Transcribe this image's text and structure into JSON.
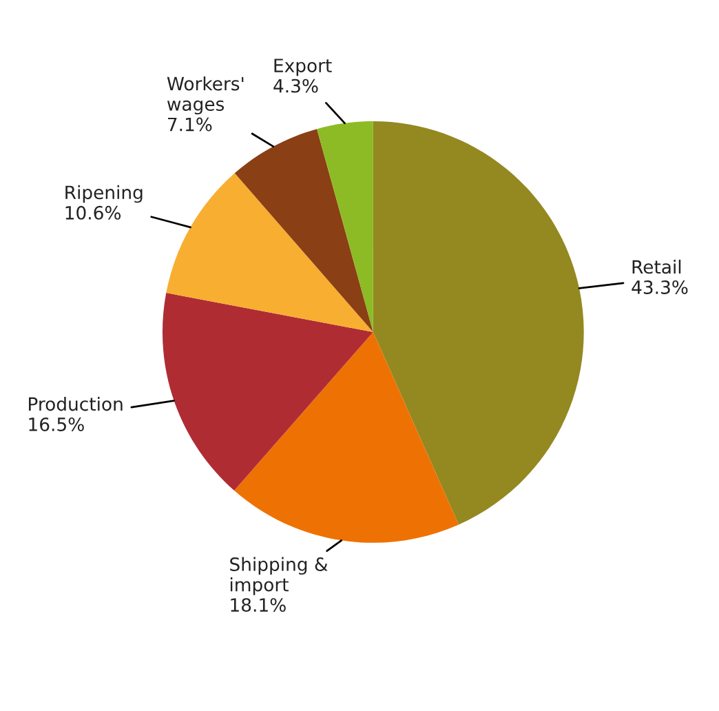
{
  "chart_data": {
    "type": "pie",
    "categories": [
      "Retail",
      "Shipping &\nimport",
      "Production",
      "Ripening",
      "Workers'\nwages",
      "Export"
    ],
    "values": [
      43.3,
      18.1,
      16.5,
      10.6,
      7.1,
      4.3
    ],
    "value_labels": [
      "43.3%",
      "18.1%",
      "16.5%",
      "10.6%",
      "7.1%",
      "4.3%"
    ],
    "colors": [
      "#948821",
      "#ee7203",
      "#b02c33",
      "#f8ae31",
      "#8a3f14",
      "#8dbb25"
    ],
    "legend": false
  }
}
